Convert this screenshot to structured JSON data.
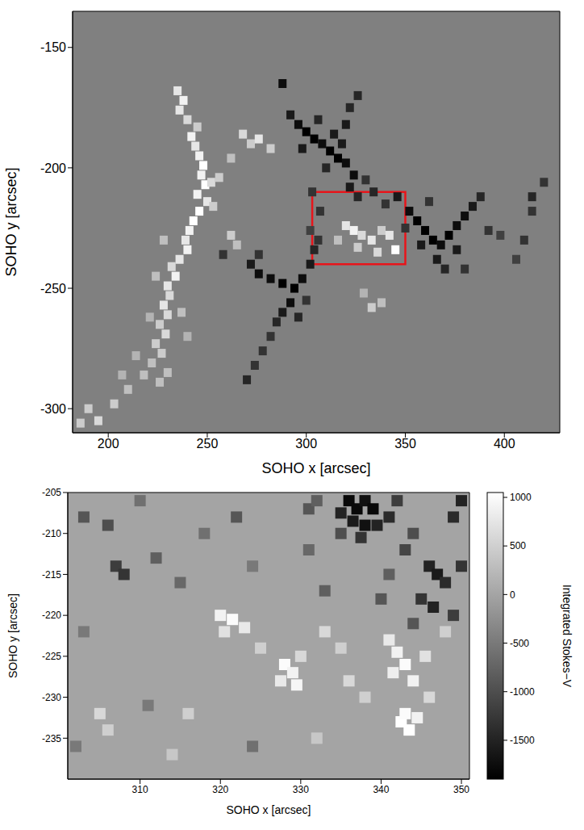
{
  "chart_data": [
    {
      "type": "heatmap",
      "x_label": "SOHO x [arcsec]",
      "y_label": "SOHO y [arcsec]",
      "xlim": [
        182,
        428
      ],
      "xticks": [
        200,
        250,
        300,
        350,
        400
      ],
      "ylim": [
        -310,
        -135
      ],
      "yticks": [
        -300,
        -250,
        -200,
        -150
      ],
      "zlim": [
        -500,
        500
      ],
      "box": {
        "x": [
          303,
          350
        ],
        "y": [
          -240,
          -210
        ],
        "color": "#e8141a"
      },
      "cells": [
        [
          235,
          -168,
          400
        ],
        [
          238,
          -172,
          450
        ],
        [
          236,
          -176,
          400
        ],
        [
          240,
          -180,
          350
        ],
        [
          245,
          -183,
          300
        ],
        [
          242,
          -187,
          450
        ],
        [
          244,
          -191,
          400
        ],
        [
          246,
          -195,
          450
        ],
        [
          248,
          -199,
          500
        ],
        [
          247,
          -203,
          450
        ],
        [
          249,
          -207,
          500
        ],
        [
          245,
          -211,
          450
        ],
        [
          250,
          -214,
          400
        ],
        [
          246,
          -218,
          500
        ],
        [
          243,
          -222,
          500
        ],
        [
          241,
          -226,
          450
        ],
        [
          239,
          -230,
          400
        ],
        [
          240,
          -234,
          450
        ],
        [
          236,
          -238,
          400
        ],
        [
          232,
          -241,
          350
        ],
        [
          234,
          -245,
          450
        ],
        [
          230,
          -249,
          400
        ],
        [
          231,
          -253,
          350
        ],
        [
          228,
          -257,
          400
        ],
        [
          230,
          -261,
          350
        ],
        [
          226,
          -265,
          300
        ],
        [
          229,
          -269,
          350
        ],
        [
          224,
          -273,
          300
        ],
        [
          227,
          -277,
          300
        ],
        [
          222,
          -281,
          250
        ],
        [
          230,
          -285,
          250
        ],
        [
          226,
          -289,
          250
        ],
        [
          252,
          -206,
          350
        ],
        [
          256,
          -204,
          300
        ],
        [
          253,
          -216,
          300
        ],
        [
          228,
          -230,
          250
        ],
        [
          224,
          -245,
          250
        ],
        [
          221,
          -262,
          200
        ],
        [
          237,
          -260,
          250
        ],
        [
          240,
          -270,
          200
        ],
        [
          214,
          -278,
          200
        ],
        [
          218,
          -286,
          250
        ],
        [
          268,
          -186,
          350
        ],
        [
          272,
          -190,
          300
        ],
        [
          276,
          -188,
          400
        ],
        [
          282,
          -192,
          300
        ],
        [
          262,
          -196,
          250
        ],
        [
          190,
          -300,
          300
        ],
        [
          195,
          -305,
          350
        ],
        [
          203,
          -298,
          300
        ],
        [
          210,
          -292,
          250
        ],
        [
          207,
          -286,
          200
        ],
        [
          186,
          -306,
          300
        ],
        [
          262,
          -228,
          300
        ],
        [
          265,
          -232,
          250
        ],
        [
          320,
          -224,
          400
        ],
        [
          324,
          -226,
          450
        ],
        [
          328,
          -228,
          350
        ],
        [
          333,
          -230,
          400
        ],
        [
          338,
          -226,
          300
        ],
        [
          342,
          -228,
          400
        ],
        [
          345,
          -234,
          500
        ],
        [
          336,
          -235,
          350
        ],
        [
          326,
          -233,
          300
        ],
        [
          316,
          -230,
          250
        ],
        [
          333,
          -258,
          300
        ],
        [
          338,
          -256,
          250
        ],
        [
          329,
          -252,
          200
        ],
        [
          288,
          -165,
          -450
        ],
        [
          292,
          -178,
          -400
        ],
        [
          296,
          -182,
          -450
        ],
        [
          300,
          -185,
          -500
        ],
        [
          304,
          -188,
          -500
        ],
        [
          308,
          -190,
          -450
        ],
        [
          312,
          -193,
          -500
        ],
        [
          316,
          -196,
          -500
        ],
        [
          320,
          -198,
          -450
        ],
        [
          318,
          -190,
          -400
        ],
        [
          320,
          -182,
          -400
        ],
        [
          322,
          -175,
          -350
        ],
        [
          326,
          -170,
          -350
        ],
        [
          324,
          -203,
          -450
        ],
        [
          322,
          -208,
          -400
        ],
        [
          326,
          -212,
          -350
        ],
        [
          330,
          -205,
          -300
        ],
        [
          334,
          -210,
          -350
        ],
        [
          310,
          -200,
          -350
        ],
        [
          298,
          -192,
          -400
        ],
        [
          306,
          -180,
          -350
        ],
        [
          314,
          -186,
          -400
        ],
        [
          303,
          -210,
          -300
        ],
        [
          307,
          -218,
          -300
        ],
        [
          302,
          -226,
          -250
        ],
        [
          340,
          -215,
          -300
        ],
        [
          346,
          -212,
          -400
        ],
        [
          352,
          -218,
          -450
        ],
        [
          356,
          -222,
          -500
        ],
        [
          360,
          -226,
          -500
        ],
        [
          364,
          -230,
          -500
        ],
        [
          368,
          -232,
          -450
        ],
        [
          372,
          -228,
          -500
        ],
        [
          376,
          -224,
          -450
        ],
        [
          380,
          -220,
          -450
        ],
        [
          384,
          -216,
          -400
        ],
        [
          388,
          -212,
          -350
        ],
        [
          366,
          -238,
          -400
        ],
        [
          370,
          -242,
          -350
        ],
        [
          358,
          -232,
          -400
        ],
        [
          350,
          -225,
          -300
        ],
        [
          376,
          -234,
          -400
        ],
        [
          380,
          -242,
          -300
        ],
        [
          392,
          -226,
          -300
        ],
        [
          398,
          -228,
          -250
        ],
        [
          362,
          -214,
          -300
        ],
        [
          258,
          -236,
          -300
        ],
        [
          272,
          -240,
          -400
        ],
        [
          276,
          -244,
          -450
        ],
        [
          282,
          -246,
          -450
        ],
        [
          288,
          -248,
          -500
        ],
        [
          294,
          -250,
          -500
        ],
        [
          298,
          -246,
          -450
        ],
        [
          302,
          -240,
          -400
        ],
        [
          304,
          -234,
          -350
        ],
        [
          292,
          -256,
          -450
        ],
        [
          288,
          -260,
          -400
        ],
        [
          285,
          -264,
          -350
        ],
        [
          282,
          -270,
          -300
        ],
        [
          278,
          -276,
          -300
        ],
        [
          274,
          -282,
          -300
        ],
        [
          270,
          -288,
          -350
        ],
        [
          296,
          -262,
          -350
        ],
        [
          300,
          -255,
          -300
        ],
        [
          276,
          -236,
          -300
        ],
        [
          306,
          -230,
          -300
        ],
        [
          414,
          -212,
          -350
        ],
        [
          414,
          -218,
          -300
        ],
        [
          410,
          -230,
          -300
        ],
        [
          406,
          -238,
          -250
        ],
        [
          420,
          -206,
          -300
        ]
      ]
    },
    {
      "type": "heatmap",
      "x_label": "SOHO x [arcsec]",
      "y_label": "SOHO y [arcsec]",
      "xlim": [
        301,
        351
      ],
      "xticks": [
        310,
        320,
        330,
        340,
        350
      ],
      "ylim": [
        -240,
        -205
      ],
      "yticks": [
        -235,
        -230,
        -225,
        -220,
        -215,
        -210,
        -205
      ],
      "zlim": [
        -1900,
        1050
      ],
      "zticks": [
        -1500,
        -1000,
        -500,
        0,
        500,
        1000
      ],
      "z_label": "Integrated Stokes−V",
      "cells": [
        [
          336,
          -206,
          -1800
        ],
        [
          337,
          -207,
          -1800
        ],
        [
          338,
          -206,
          -1700
        ],
        [
          339,
          -207,
          -1800
        ],
        [
          335,
          -207.5,
          -1500
        ],
        [
          336.5,
          -208.5,
          -1600
        ],
        [
          338,
          -209,
          -1700
        ],
        [
          339.5,
          -209,
          -1500
        ],
        [
          341,
          -208,
          -1400
        ],
        [
          337.5,
          -210.5,
          -1300
        ],
        [
          335,
          -210,
          -1000
        ],
        [
          342,
          -206,
          -1200
        ],
        [
          344,
          -210,
          -1000
        ],
        [
          343,
          -212,
          -1100
        ],
        [
          331,
          -207,
          -900
        ],
        [
          332,
          -206,
          -800
        ],
        [
          346,
          -214,
          -1500
        ],
        [
          347,
          -215,
          -1600
        ],
        [
          348,
          -216,
          -1400
        ],
        [
          345,
          -218,
          -1300
        ],
        [
          346.5,
          -219,
          -1500
        ],
        [
          349,
          -220,
          -1200
        ],
        [
          350,
          -214,
          -1300
        ],
        [
          344,
          -221,
          -900
        ],
        [
          349,
          -208,
          -1400
        ],
        [
          350,
          -206,
          -1500
        ],
        [
          341,
          -215,
          -800
        ],
        [
          340,
          -218,
          -900
        ],
        [
          303,
          -208,
          -900
        ],
        [
          306,
          -209,
          -1000
        ],
        [
          307,
          -214,
          -1200
        ],
        [
          308,
          -215,
          -1300
        ],
        [
          312,
          -213,
          -800
        ],
        [
          315,
          -216,
          -700
        ],
        [
          310,
          -206,
          -600
        ],
        [
          322,
          -208,
          -900
        ],
        [
          318,
          -210,
          -600
        ],
        [
          333,
          -217,
          -800
        ],
        [
          331,
          -212,
          -700
        ],
        [
          324,
          -214,
          -500
        ],
        [
          303,
          -222,
          -500
        ],
        [
          311,
          -231,
          -500
        ],
        [
          324,
          -236,
          -600
        ],
        [
          302,
          -236,
          -500
        ],
        [
          320,
          -220,
          900
        ],
        [
          321.5,
          -220.5,
          1000
        ],
        [
          323,
          -221.5,
          800
        ],
        [
          320.5,
          -222,
          700
        ],
        [
          328,
          -226,
          1000
        ],
        [
          329,
          -227,
          900
        ],
        [
          327.5,
          -228,
          800
        ],
        [
          329.5,
          -228.5,
          950
        ],
        [
          330,
          -225,
          600
        ],
        [
          325,
          -224,
          500
        ],
        [
          333,
          -222,
          600
        ],
        [
          341,
          -223,
          800
        ],
        [
          342,
          -224.5,
          900
        ],
        [
          343,
          -226,
          1000
        ],
        [
          341.5,
          -227,
          850
        ],
        [
          344,
          -228,
          900
        ],
        [
          345.5,
          -225,
          700
        ],
        [
          342.5,
          -233,
          1050
        ],
        [
          343.5,
          -234,
          1050
        ],
        [
          343,
          -232,
          1000
        ],
        [
          344.5,
          -232.5,
          900
        ],
        [
          346,
          -230,
          600
        ],
        [
          336,
          -228,
          600
        ],
        [
          338,
          -230,
          500
        ],
        [
          316,
          -232,
          500
        ],
        [
          305,
          -232,
          600
        ],
        [
          306,
          -234,
          500
        ],
        [
          314,
          -237,
          400
        ],
        [
          332,
          -235,
          400
        ],
        [
          348,
          -222,
          500
        ],
        [
          335,
          -224,
          500
        ]
      ]
    }
  ]
}
